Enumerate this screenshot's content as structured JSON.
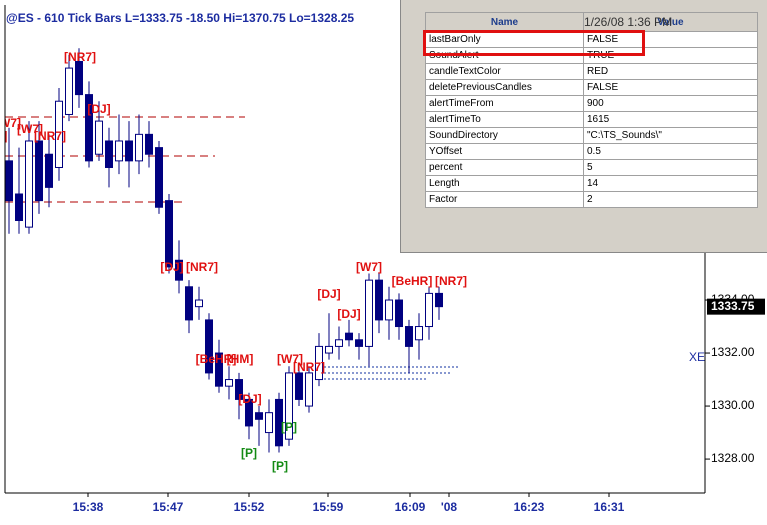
{
  "header": {
    "title": "@ES - 610 Tick Bars  L=1333.75  -18.50  Hi=1370.75  Lo=1328.25"
  },
  "chart_data": {
    "type": "candlestick",
    "ylim": [
      1326.72,
      1345.13
    ],
    "yticks": [
      {
        "value": 1328,
        "label": "1328.00"
      },
      {
        "value": 1330,
        "label": "1330.00"
      },
      {
        "value": 1332,
        "label": "1332.00"
      },
      {
        "value": 1334,
        "label": "1334.00"
      }
    ],
    "xticks": [
      "15:38",
      "15:47",
      "15:52",
      "15:59",
      "16:09",
      "'08",
      "16:23",
      "16:31"
    ],
    "open": [
      1339.25,
      1338,
      1336.75,
      1340,
      1339.5,
      1339,
      1341,
      1343,
      1341.75,
      1339.5,
      1340,
      1339.25,
      1340,
      1339.25,
      1340.25,
      1339.75,
      1337.75,
      1335.5,
      1334.5,
      1333.75,
      1333.25,
      1332,
      1330.75,
      1331,
      1330.25,
      1329.75,
      1329,
      1330.25,
      1328.75,
      1331.25,
      1330,
      1331,
      1332,
      1332.25,
      1332.75,
      1332.5,
      1332.25,
      1334.75,
      1333.25,
      1334,
      1333,
      1332.5,
      1333,
      1334.25
    ],
    "high": [
      1340.5,
      1339.75,
      1340.75,
      1340.75,
      1340.25,
      1342,
      1343.25,
      1343.5,
      1342.25,
      1341.5,
      1340.5,
      1341,
      1340.75,
      1341,
      1340.75,
      1340,
      1338,
      1336.25,
      1334.75,
      1334.5,
      1333.5,
      1332.5,
      1331.5,
      1331.25,
      1330.5,
      1330,
      1330.25,
      1330.5,
      1331.5,
      1331.5,
      1331.5,
      1332.75,
      1333.5,
      1333,
      1333.25,
      1332.75,
      1335,
      1335,
      1334.5,
      1334.25,
      1333.25,
      1333.5,
      1334.5,
      1334.5
    ],
    "low": [
      1336.5,
      1336.5,
      1336.5,
      1337.25,
      1337.5,
      1338.5,
      1340.75,
      1341.25,
      1339,
      1339.25,
      1338.25,
      1338.75,
      1338.25,
      1338.75,
      1339,
      1337.25,
      1335,
      1334.25,
      1332.75,
      1333.25,
      1331,
      1330.5,
      1330.25,
      1329.5,
      1328.75,
      1328.5,
      1328.25,
      1328.25,
      1328.5,
      1330,
      1329.75,
      1330.75,
      1331.75,
      1331.75,
      1332.25,
      1331.75,
      1331.5,
      1332.75,
      1332.5,
      1332.5,
      1331.25,
      1331.75,
      1332.5,
      1333.25
    ],
    "close": [
      1337.75,
      1337,
      1340,
      1337.75,
      1338.25,
      1341.5,
      1342.75,
      1341.75,
      1339.25,
      1340.75,
      1339,
      1340,
      1339.25,
      1340.25,
      1339.5,
      1337.5,
      1335.25,
      1334.75,
      1333.25,
      1334,
      1331.25,
      1330.75,
      1331,
      1330.25,
      1329.25,
      1329.5,
      1329.75,
      1328.5,
      1331.25,
      1330.25,
      1331.25,
      1332.25,
      1332.25,
      1332.5,
      1332.5,
      1332.25,
      1334.75,
      1333.25,
      1334,
      1333,
      1332.25,
      1333,
      1334.25,
      1333.75
    ],
    "up_color": "#ffffff",
    "down_color": "#000080",
    "last_price": {
      "value": 1333.75,
      "label": "1333.75"
    },
    "axis_marker": "XE",
    "annotations": [
      {
        "text": "[NR7]",
        "color": "#e01010"
      },
      {
        "text": "[DJ]",
        "color": "#e01010"
      },
      {
        "text": "[W7]",
        "color": "#e01010"
      },
      {
        "text": "[W7]",
        "color": "#e01010"
      },
      {
        "text": "[NR7]",
        "color": "#e01010"
      },
      {
        "text": "r]",
        "color": "#e01010"
      },
      {
        "text": "[DJ]",
        "color": "#e01010"
      },
      {
        "text": "[NR7]",
        "color": "#e01010"
      },
      {
        "text": "[DJ]",
        "color": "#e01010"
      },
      {
        "text": "[W7]",
        "color": "#e01010"
      },
      {
        "text": "[BeHR]",
        "color": "#e01010"
      },
      {
        "text": "[NR7]",
        "color": "#e01010"
      },
      {
        "text": "[DJ]",
        "color": "#e01010"
      },
      {
        "text": "[BeHR]",
        "color": "#e01010"
      },
      {
        "text": "[HM]",
        "color": "#e01010"
      },
      {
        "text": "[W7]",
        "color": "#e01010"
      },
      {
        "text": "[NR7]",
        "color": "#e01010"
      },
      {
        "text": "[DJ]",
        "color": "#e01010"
      },
      {
        "text": "[P]",
        "color": "#138a13"
      },
      {
        "text": "[P]",
        "color": "#138a13"
      },
      {
        "text": "[P]",
        "color": "#138a13"
      }
    ]
  },
  "properties": {
    "columns": [
      "Name",
      "Value"
    ],
    "timestamp": "1/26/08 1:36 PM",
    "rows": [
      [
        "lastBarOnly",
        "FALSE"
      ],
      [
        "SoundAlert",
        "TRUE"
      ],
      [
        "candleTextColor",
        "RED"
      ],
      [
        "deletePreviousCandles",
        "FALSE"
      ],
      [
        "alertTimeFrom",
        "900"
      ],
      [
        "alertTimeTo",
        "1615"
      ],
      [
        "SoundDirectory",
        "\"C:\\TS_Sounds\\\""
      ],
      [
        "YOffset",
        "0.5"
      ],
      [
        "percent",
        "5"
      ],
      [
        "Length",
        "14"
      ],
      [
        "Factor",
        "2"
      ]
    ]
  }
}
